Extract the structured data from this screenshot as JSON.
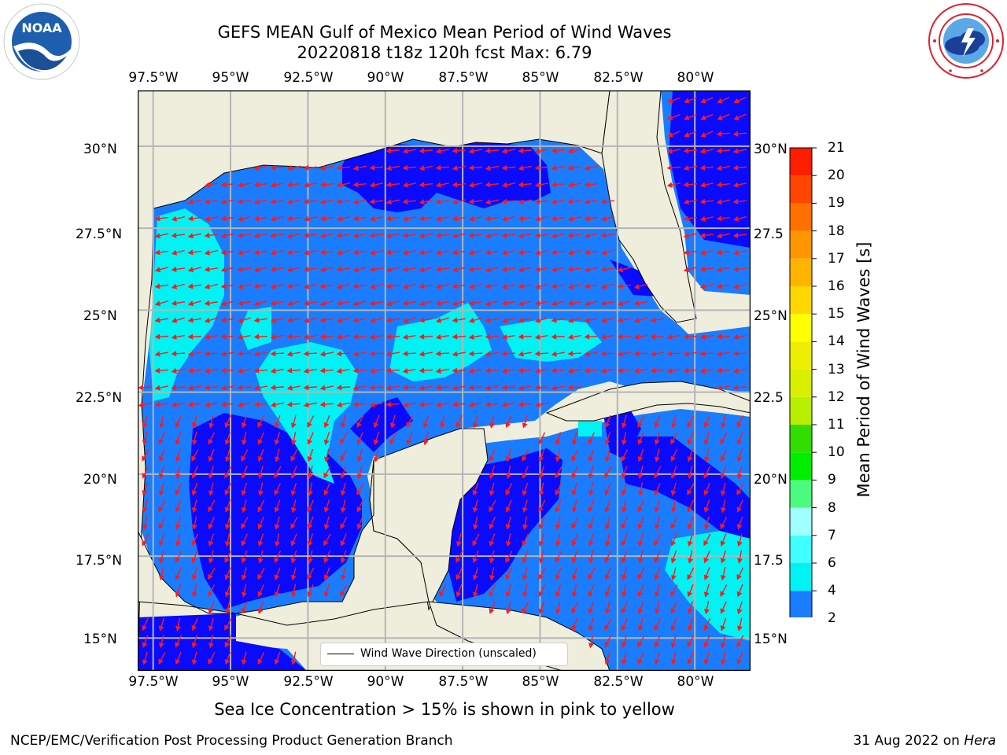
{
  "header": {
    "title": "GEFS MEAN Gulf of Mexico Mean Period of Wind Waves",
    "subtitle": "20220818 t18z 120h fcst   Max: 6.79"
  },
  "logos": {
    "left": {
      "icon": "noaa-logo-icon",
      "text": "NOAA"
    },
    "right": {
      "icon": "national-weather-service-logo-icon"
    }
  },
  "map": {
    "lon_ticks": [
      "97.5°W",
      "95°W",
      "92.5°W",
      "90°W",
      "87.5°W",
      "85°W",
      "82.5°W",
      "80°W"
    ],
    "lat_ticks_left": [
      "30°N",
      "27.5°N",
      "25°N",
      "22.5°N",
      "20°N",
      "17.5°N",
      "15°N"
    ],
    "lat_ticks_right": [
      "30°N",
      "27.5",
      "25°N",
      "22.5",
      "20°N",
      "17.5",
      "15°N"
    ],
    "lon_values": [
      -97.5,
      -95,
      -92.5,
      -90,
      -87.5,
      -85,
      -82.5,
      -80
    ],
    "lat_values": [
      30,
      27.5,
      25,
      22.5,
      20,
      17.5,
      15
    ],
    "extent": {
      "lon": [
        -98,
        -78.2
      ],
      "lat": [
        14,
        31.7
      ]
    },
    "land_color": "#efeedd",
    "arrow_color": "#ff1a1a",
    "legend_label": "Wind Wave Direction (unscaled)"
  },
  "colorbar": {
    "label": "Mean Period of Wind Waves [s]",
    "ticks": [
      "2",
      "4",
      "6",
      "7",
      "8",
      "9",
      "10",
      "11",
      "12",
      "13",
      "14",
      "15",
      "16",
      "17",
      "18",
      "19",
      "20",
      "21"
    ],
    "colors": [
      "#1a7dff",
      "#00f2f2",
      "#40ffff",
      "#a0ffff",
      "#4dfa80",
      "#00ee00",
      "#33dd00",
      "#b8ee00",
      "#d8f000",
      "#eeee00",
      "#ffff00",
      "#ffd700",
      "#ffb400",
      "#ff9600",
      "#ff7000",
      "#ff4600",
      "#ff1e00"
    ],
    "under_color": "#0a0aff"
  },
  "notes": {
    "sea_ice": "Sea Ice Concentration > 15% is shown in pink to yellow"
  },
  "footer": {
    "left": "NCEP/EMC/Verification Post Processing Product Generation Branch",
    "right_prefix": "31 Aug 2022 on ",
    "right_host": "Hera"
  }
}
